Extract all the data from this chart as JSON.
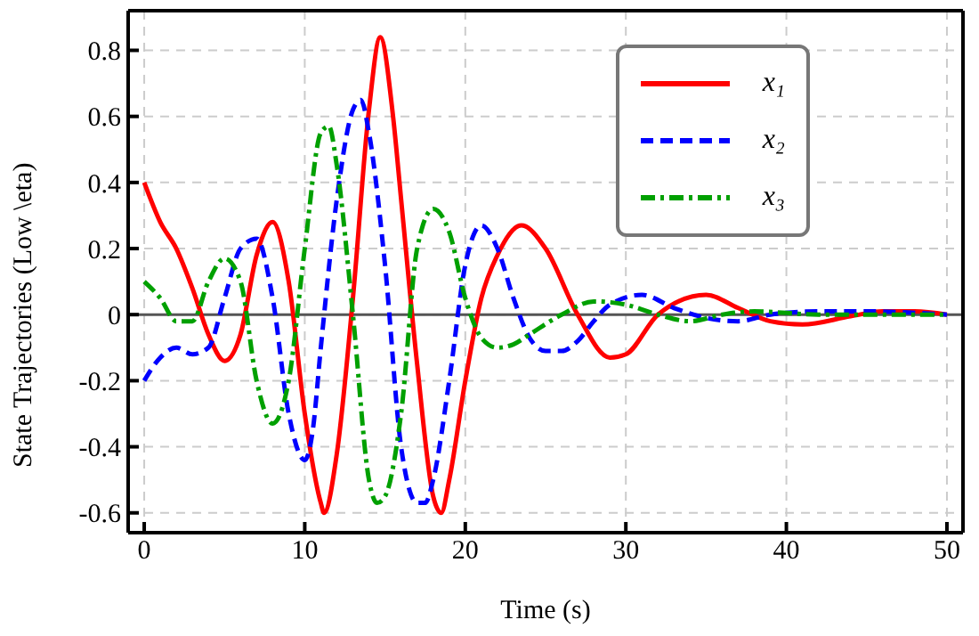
{
  "chart_data": {
    "type": "line",
    "xlabel": "Time (s)",
    "ylabel": "State Trajectories (Low \\eta)",
    "xlim": [
      -1,
      51
    ],
    "xticks": [
      0,
      10,
      20,
      30,
      40,
      50
    ],
    "ylim": [
      -0.66,
      0.92
    ],
    "yticks": [
      -0.6,
      -0.4,
      -0.2,
      0.0,
      0.2,
      0.4,
      0.6,
      0.8
    ],
    "grid": true,
    "legend": "top right",
    "marker": "none",
    "ref_lines": [
      {
        "axis": "y",
        "value": 0,
        "color": "#555555"
      }
    ],
    "series": [
      {
        "name": "x₁",
        "color": "#ff0000",
        "line_style": "solid",
        "x": [
          0,
          1,
          2,
          3,
          4,
          5,
          6,
          7,
          8,
          9,
          10,
          11,
          11.2,
          12,
          13,
          14,
          14.7,
          15.5,
          16,
          17,
          18,
          18.5,
          19,
          20,
          21,
          22,
          23.5,
          25,
          27,
          29,
          30,
          32,
          35,
          37,
          39,
          41,
          44,
          46,
          48,
          50
        ],
        "values": [
          0.4,
          0.28,
          0.2,
          0.08,
          -0.06,
          -0.14,
          -0.06,
          0.18,
          0.28,
          0.1,
          -0.3,
          -0.57,
          -0.6,
          -0.42,
          0.05,
          0.62,
          0.84,
          0.6,
          0.35,
          -0.15,
          -0.55,
          -0.6,
          -0.5,
          -0.2,
          0.05,
          0.18,
          0.27,
          0.2,
          0.0,
          -0.13,
          -0.12,
          0.0,
          0.06,
          0.02,
          -0.02,
          -0.03,
          -0.005,
          0.01,
          0.01,
          0.0
        ]
      },
      {
        "name": "x₂",
        "color": "#0000ff",
        "line_style": "dashed",
        "x": [
          0,
          1,
          2,
          3,
          4,
          5,
          6,
          7,
          8,
          9,
          10,
          10.5,
          11,
          12,
          13,
          13.5,
          14,
          15,
          16,
          17,
          17.5,
          18,
          19,
          20,
          21,
          22,
          23,
          24,
          25,
          26,
          27,
          28,
          29,
          31,
          33,
          35,
          37,
          39,
          42,
          45,
          50
        ],
        "values": [
          -0.2,
          -0.13,
          -0.1,
          -0.12,
          -0.1,
          0.05,
          0.2,
          0.23,
          0.05,
          -0.3,
          -0.44,
          -0.35,
          -0.1,
          0.35,
          0.62,
          0.65,
          0.55,
          0.15,
          -0.4,
          -0.57,
          -0.57,
          -0.5,
          -0.2,
          0.15,
          0.27,
          0.2,
          0.05,
          -0.07,
          -0.11,
          -0.11,
          -0.08,
          -0.02,
          0.03,
          0.06,
          0.02,
          -0.01,
          -0.02,
          0.0,
          0.01,
          0.01,
          0.0
        ]
      },
      {
        "name": "x₃",
        "color": "#00a000",
        "line_style": "dotted",
        "x": [
          0,
          1,
          2,
          3,
          4,
          5,
          6,
          7,
          8,
          9,
          10,
          11,
          11.5,
          12,
          13,
          14,
          14.5,
          15,
          16,
          17,
          18,
          19,
          20,
          21,
          22,
          23,
          24,
          26,
          28,
          30,
          32,
          34,
          36,
          38,
          42,
          50
        ],
        "values": [
          0.1,
          0.05,
          -0.02,
          -0.02,
          0.1,
          0.17,
          0.1,
          -0.2,
          -0.33,
          -0.2,
          0.2,
          0.55,
          0.57,
          0.45,
          0.0,
          -0.5,
          -0.57,
          -0.55,
          -0.3,
          0.2,
          0.32,
          0.25,
          0.05,
          -0.07,
          -0.1,
          -0.09,
          -0.06,
          0.0,
          0.04,
          0.03,
          0.0,
          -0.02,
          0.0,
          0.01,
          0.0,
          0.0
        ]
      }
    ]
  }
}
